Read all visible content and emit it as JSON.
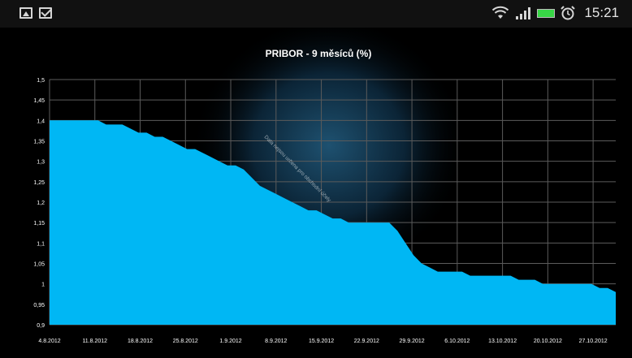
{
  "status_bar": {
    "left_icons": [
      "picture-icon",
      "mail-icon"
    ],
    "right_icons": [
      "wifi-icon",
      "signal-icon",
      "battery-icon",
      "alarm-icon"
    ],
    "time": "15:21",
    "battery_color": "#38d646"
  },
  "chart_data": {
    "type": "area",
    "title": "PRIBOR - 9 měsíců (%)",
    "xlabel": "",
    "ylabel": "",
    "ylim": [
      0.9,
      1.5
    ],
    "grid": true,
    "fill_color": "#00b7f4",
    "yticks": [
      "0,9",
      "0,95",
      "1",
      "1,05",
      "1,1",
      "1,15",
      "1,2",
      "1,25",
      "1,3",
      "1,35",
      "1,4",
      "1,45",
      "1,5"
    ],
    "ytick_values": [
      0.9,
      0.95,
      1.0,
      1.05,
      1.1,
      1.15,
      1.2,
      1.25,
      1.3,
      1.35,
      1.4,
      1.45,
      1.5
    ],
    "xticks": [
      "4.8.2012",
      "11.8.2012",
      "18.8.2012",
      "25.8.2012",
      "1.9.2012",
      "8.9.2012",
      "15.9.2012",
      "22.9.2012",
      "29.9.2012",
      "6.10.2012",
      "13.10.2012",
      "20.10.2012",
      "27.10.2012"
    ],
    "series": [
      {
        "values": [
          1.4,
          1.4,
          1.4,
          1.4,
          1.4,
          1.4,
          1.4,
          1.39,
          1.39,
          1.39,
          1.38,
          1.37,
          1.37,
          1.36,
          1.36,
          1.35,
          1.34,
          1.33,
          1.33,
          1.32,
          1.31,
          1.3,
          1.29,
          1.29,
          1.28,
          1.26,
          1.24,
          1.23,
          1.22,
          1.21,
          1.2,
          1.19,
          1.18,
          1.18,
          1.17,
          1.16,
          1.16,
          1.15,
          1.15,
          1.15,
          1.15,
          1.15,
          1.15,
          1.13,
          1.1,
          1.07,
          1.05,
          1.04,
          1.03,
          1.03,
          1.03,
          1.03,
          1.02,
          1.02,
          1.02,
          1.02,
          1.02,
          1.02,
          1.01,
          1.01,
          1.01,
          1.0,
          1.0,
          1.0,
          1.0,
          1.0,
          1.0,
          1.0,
          0.99,
          0.99,
          0.98
        ]
      }
    ],
    "watermark": "Data nejsou určena pro obchodní účely"
  }
}
